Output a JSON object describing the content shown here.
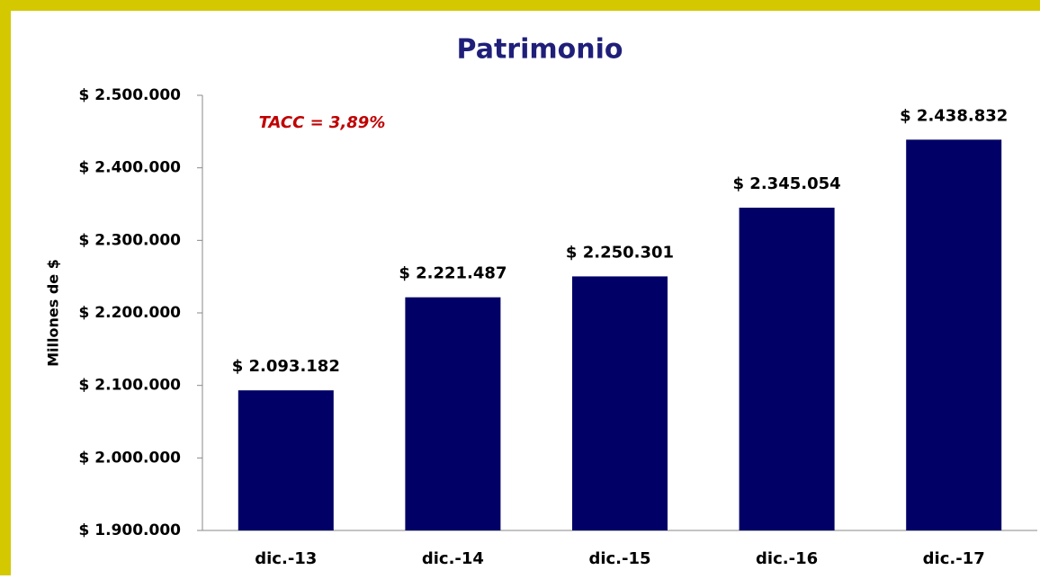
{
  "chart_data": {
    "type": "bar",
    "title": "Patrimonio",
    "y_label": "Millones de $",
    "annotation": "TACC = 3,89%",
    "categories": [
      "dic.-13",
      "dic.-14",
      "dic.-15",
      "dic.-16",
      "dic.-17"
    ],
    "values": [
      2093182,
      2221487,
      2250301,
      2345054,
      2438832
    ],
    "value_labels": [
      "$ 2.093.182",
      "$ 2.221.487",
      "$ 2.250.301",
      "$ 2.345.054",
      "$ 2.438.832"
    ],
    "color": "#000066",
    "ylim": [
      1900000,
      2500000
    ],
    "yticks": [
      {
        "value": 1900000,
        "label": "$ 1.900.000"
      },
      {
        "value": 2000000,
        "label": "$ 2.000.000"
      },
      {
        "value": 2100000,
        "label": "$ 2.100.000"
      },
      {
        "value": 2200000,
        "label": "$ 2.200.000"
      },
      {
        "value": 2300000,
        "label": "$ 2.300.000"
      },
      {
        "value": 2400000,
        "label": "$ 2.400.000"
      },
      {
        "value": 2500000,
        "label": "$ 2.500.000"
      }
    ],
    "grid": false
  }
}
